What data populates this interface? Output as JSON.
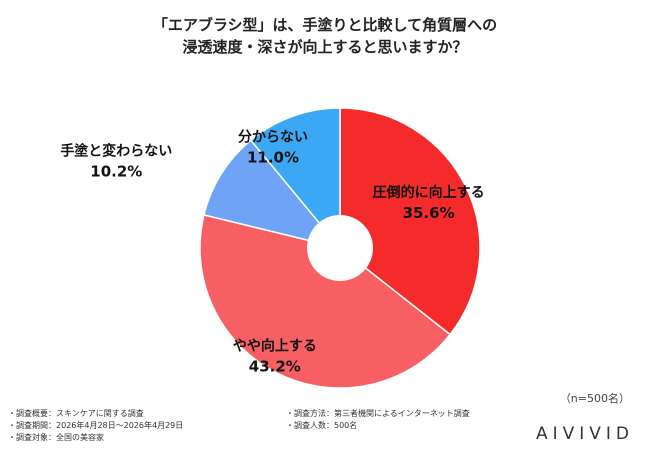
{
  "title": {
    "line1": "「エアブラシ型」は、手塗りと比較して角質層への",
    "line2": "浸透速度・深さが向上すると思いますか？"
  },
  "chart_data": {
    "type": "pie",
    "donut": true,
    "start_angle_deg": 0,
    "direction": "clockwise",
    "categories": [
      "圧倒的に向上する",
      "やや向上する",
      "手塗と変わらない",
      "分からない"
    ],
    "values": [
      35.6,
      43.2,
      10.2,
      11.0
    ],
    "value_labels": [
      "35.6%",
      "43.2%",
      "10.2%",
      "11.0%"
    ],
    "colors": [
      "#f52b2b",
      "#f75f63",
      "#6ea3f5",
      "#3aa8f5"
    ],
    "label_color": [
      "#111111",
      "#111111",
      "#111111",
      "#111111"
    ]
  },
  "sample_size": "（n=500名）",
  "footer": {
    "left": [
      "・調査概要：スキンケアに関する調査",
      "・調査期間：2026年4月28日〜2026年4月29日",
      "・調査対象：全国の美容家"
    ],
    "right": [
      "・調査方法：第三者機関によるインターネット調査",
      "・調査人数：500名"
    ]
  },
  "brand": "AIVIVID"
}
